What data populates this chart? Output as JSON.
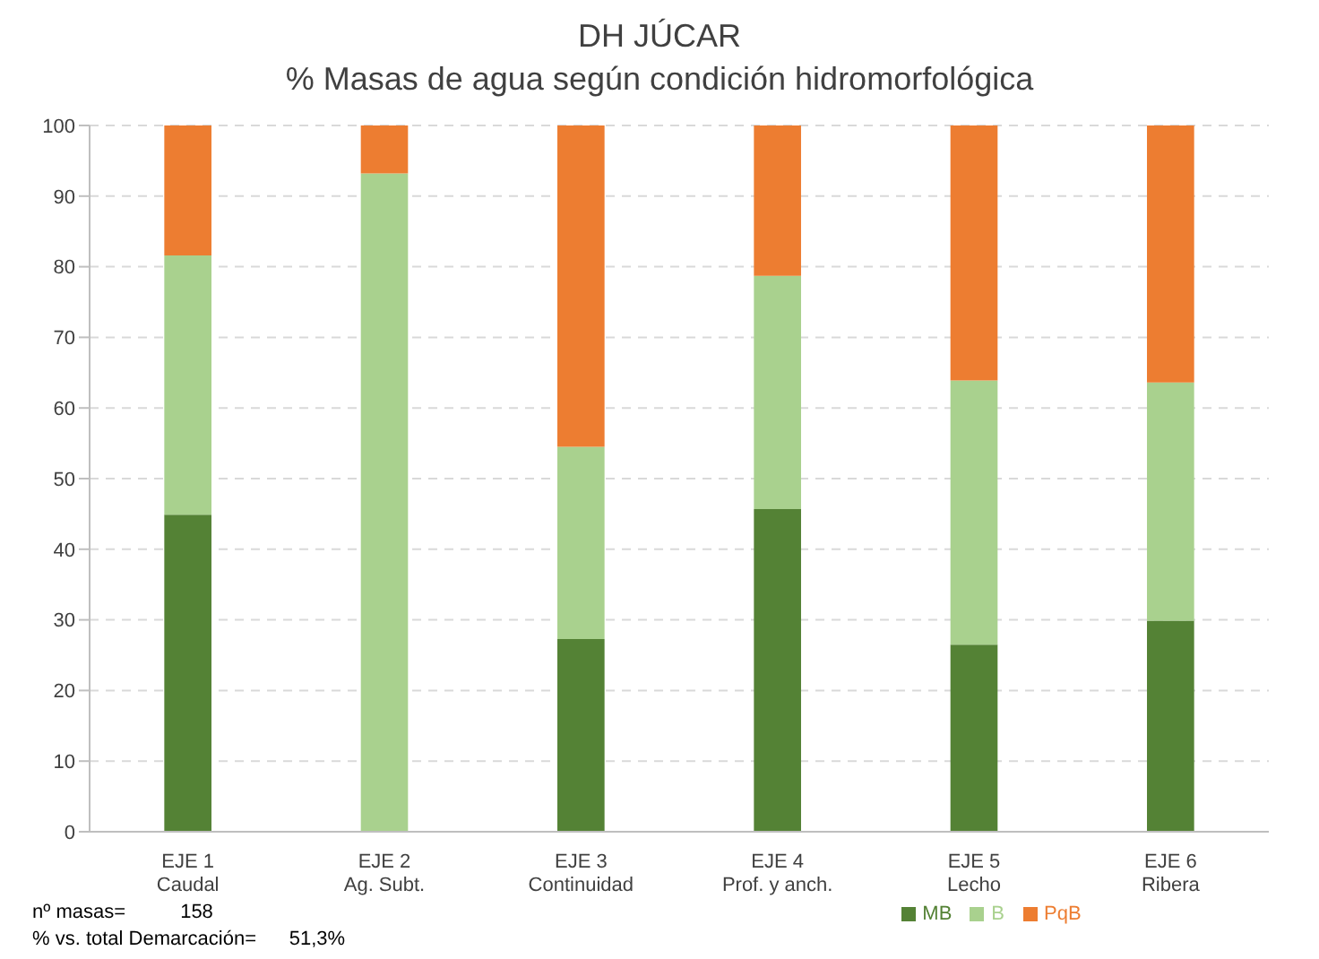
{
  "chart_data": {
    "type": "bar",
    "title": "DH JÚCAR",
    "subtitle": "% Masas de agua según condición hidromorfológica",
    "categories": [
      "EJE 1\nCaudal",
      "EJE 2\nAg. Subt.",
      "EJE 3\nContinuidad",
      "EJE 4\nProf. y anch.",
      "EJE 5\nLecho",
      "EJE 6\nRibera"
    ],
    "stacked": true,
    "series": [
      {
        "name": "MB",
        "color": "#548235",
        "values": [
          44.9,
          0,
          27.3,
          45.7,
          26.5,
          29.9
        ]
      },
      {
        "name": "B",
        "color": "#a9d18e",
        "values": [
          36.7,
          93.2,
          27.2,
          33.0,
          37.4,
          33.7
        ]
      },
      {
        "name": "PqB",
        "color": "#ed7d31",
        "values": [
          18.4,
          6.8,
          45.5,
          21.3,
          36.1,
          36.4
        ]
      }
    ],
    "ylim": [
      0,
      100
    ],
    "yticks": [
      0,
      10,
      20,
      30,
      40,
      50,
      60,
      70,
      80,
      90,
      100
    ],
    "grid": "y",
    "legend": "bottom",
    "annotations": [
      "nº masas=          158",
      "% vs. total Demarcación=      51,3%"
    ]
  }
}
